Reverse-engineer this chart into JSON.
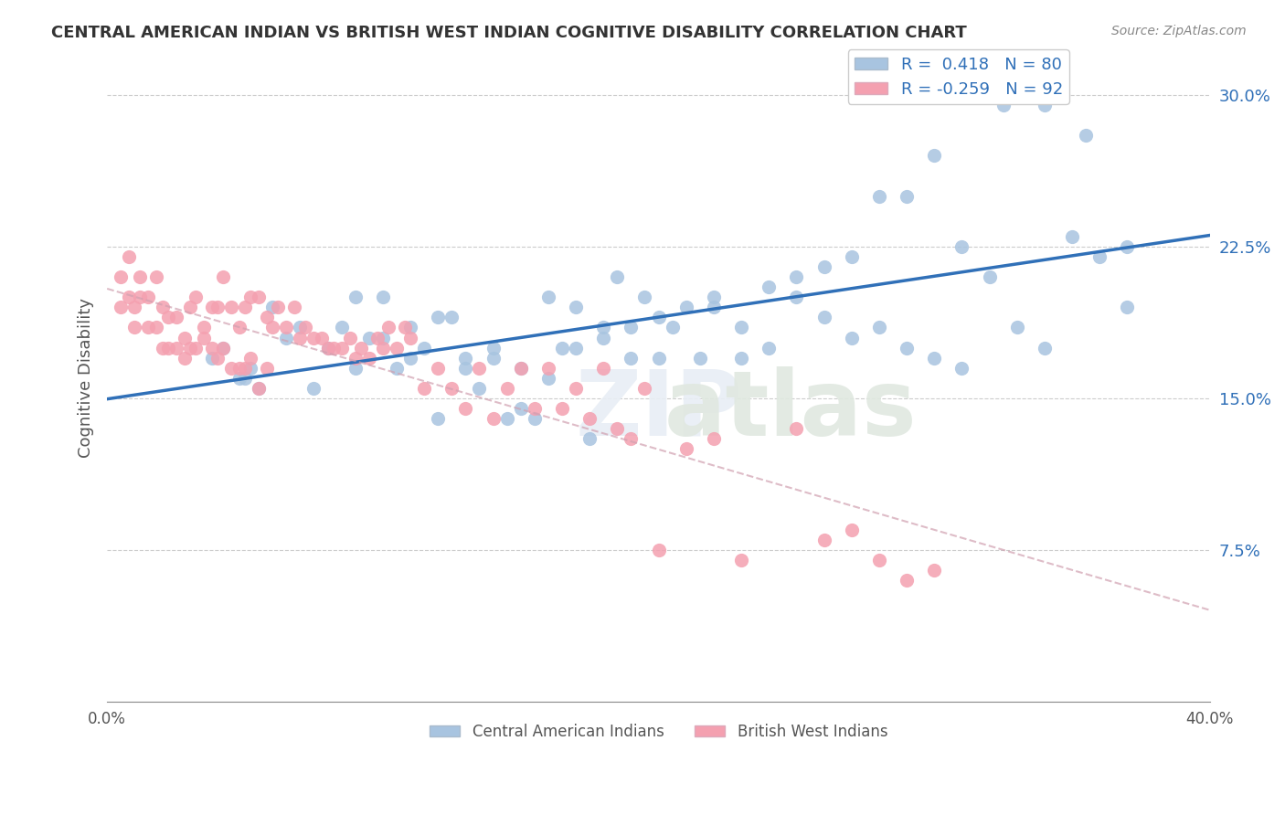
{
  "title": "CENTRAL AMERICAN INDIAN VS BRITISH WEST INDIAN COGNITIVE DISABILITY CORRELATION CHART",
  "source": "Source: ZipAtlas.com",
  "ylabel": "Cognitive Disability",
  "xlabel": "",
  "xmin": 0.0,
  "xmax": 0.4,
  "ymin": 0.0,
  "ymax": 0.32,
  "yticks": [
    0.075,
    0.15,
    0.225,
    0.3
  ],
  "ytick_labels": [
    "7.5%",
    "15.0%",
    "22.5%",
    "30.0%"
  ],
  "xticks": [
    0.0,
    0.1,
    0.2,
    0.3,
    0.4
  ],
  "xtick_labels": [
    "0.0%",
    "",
    "",
    "",
    "40.0%"
  ],
  "legend_r1": "R =  0.418   N = 80",
  "legend_r2": "R = -0.259   N = 92",
  "blue_r": 0.418,
  "blue_n": 80,
  "pink_r": -0.259,
  "pink_n": 92,
  "blue_color": "#a8c4e0",
  "pink_color": "#f4a0b0",
  "blue_line_color": "#3070b8",
  "pink_line_color": "#e0a0b0",
  "watermark": "ZIPatlas",
  "blue_scatter_x": [
    0.05,
    0.09,
    0.1,
    0.11,
    0.12,
    0.13,
    0.14,
    0.15,
    0.16,
    0.17,
    0.18,
    0.19,
    0.2,
    0.21,
    0.22,
    0.23,
    0.24,
    0.25,
    0.26,
    0.27,
    0.28,
    0.29,
    0.3,
    0.31,
    0.32,
    0.33,
    0.34,
    0.35,
    0.36,
    0.37,
    0.038,
    0.042,
    0.048,
    0.052,
    0.055,
    0.06,
    0.065,
    0.07,
    0.075,
    0.08,
    0.085,
    0.09,
    0.095,
    0.1,
    0.105,
    0.11,
    0.115,
    0.12,
    0.125,
    0.13,
    0.135,
    0.14,
    0.145,
    0.15,
    0.155,
    0.16,
    0.165,
    0.17,
    0.175,
    0.18,
    0.185,
    0.19,
    0.195,
    0.2,
    0.205,
    0.215,
    0.22,
    0.23,
    0.24,
    0.25,
    0.26,
    0.27,
    0.28,
    0.29,
    0.3,
    0.31,
    0.325,
    0.34,
    0.355,
    0.37
  ],
  "blue_scatter_y": [
    0.16,
    0.2,
    0.18,
    0.17,
    0.19,
    0.17,
    0.175,
    0.165,
    0.16,
    0.175,
    0.18,
    0.185,
    0.19,
    0.195,
    0.2,
    0.17,
    0.175,
    0.2,
    0.19,
    0.18,
    0.185,
    0.175,
    0.17,
    0.165,
    0.21,
    0.185,
    0.175,
    0.23,
    0.22,
    0.195,
    0.17,
    0.175,
    0.16,
    0.165,
    0.155,
    0.195,
    0.18,
    0.185,
    0.155,
    0.175,
    0.185,
    0.165,
    0.18,
    0.2,
    0.165,
    0.185,
    0.175,
    0.14,
    0.19,
    0.165,
    0.155,
    0.17,
    0.14,
    0.145,
    0.14,
    0.2,
    0.175,
    0.195,
    0.13,
    0.185,
    0.21,
    0.17,
    0.2,
    0.17,
    0.185,
    0.17,
    0.195,
    0.185,
    0.205,
    0.21,
    0.215,
    0.22,
    0.25,
    0.25,
    0.27,
    0.225,
    0.295,
    0.295,
    0.28,
    0.225
  ],
  "pink_scatter_x": [
    0.005,
    0.008,
    0.01,
    0.012,
    0.015,
    0.018,
    0.02,
    0.022,
    0.025,
    0.028,
    0.03,
    0.032,
    0.035,
    0.038,
    0.04,
    0.042,
    0.045,
    0.048,
    0.05,
    0.052,
    0.055,
    0.058,
    0.06,
    0.062,
    0.065,
    0.068,
    0.07,
    0.072,
    0.075,
    0.078,
    0.08,
    0.082,
    0.085,
    0.088,
    0.09,
    0.092,
    0.095,
    0.098,
    0.1,
    0.102,
    0.105,
    0.108,
    0.11,
    0.115,
    0.12,
    0.125,
    0.13,
    0.135,
    0.14,
    0.145,
    0.15,
    0.155,
    0.16,
    0.165,
    0.17,
    0.175,
    0.18,
    0.185,
    0.19,
    0.195,
    0.2,
    0.21,
    0.22,
    0.23,
    0.25,
    0.26,
    0.27,
    0.28,
    0.29,
    0.3,
    0.005,
    0.008,
    0.01,
    0.012,
    0.015,
    0.018,
    0.02,
    0.022,
    0.025,
    0.028,
    0.03,
    0.032,
    0.035,
    0.038,
    0.04,
    0.042,
    0.045,
    0.048,
    0.05,
    0.052,
    0.055,
    0.058
  ],
  "pink_scatter_y": [
    0.21,
    0.22,
    0.195,
    0.21,
    0.2,
    0.21,
    0.195,
    0.19,
    0.19,
    0.18,
    0.195,
    0.2,
    0.185,
    0.195,
    0.195,
    0.21,
    0.195,
    0.185,
    0.195,
    0.2,
    0.2,
    0.19,
    0.185,
    0.195,
    0.185,
    0.195,
    0.18,
    0.185,
    0.18,
    0.18,
    0.175,
    0.175,
    0.175,
    0.18,
    0.17,
    0.175,
    0.17,
    0.18,
    0.175,
    0.185,
    0.175,
    0.185,
    0.18,
    0.155,
    0.165,
    0.155,
    0.145,
    0.165,
    0.14,
    0.155,
    0.165,
    0.145,
    0.165,
    0.145,
    0.155,
    0.14,
    0.165,
    0.135,
    0.13,
    0.155,
    0.075,
    0.125,
    0.13,
    0.07,
    0.135,
    0.08,
    0.085,
    0.07,
    0.06,
    0.065,
    0.195,
    0.2,
    0.185,
    0.2,
    0.185,
    0.185,
    0.175,
    0.175,
    0.175,
    0.17,
    0.175,
    0.175,
    0.18,
    0.175,
    0.17,
    0.175,
    0.165,
    0.165,
    0.165,
    0.17,
    0.155,
    0.165
  ]
}
